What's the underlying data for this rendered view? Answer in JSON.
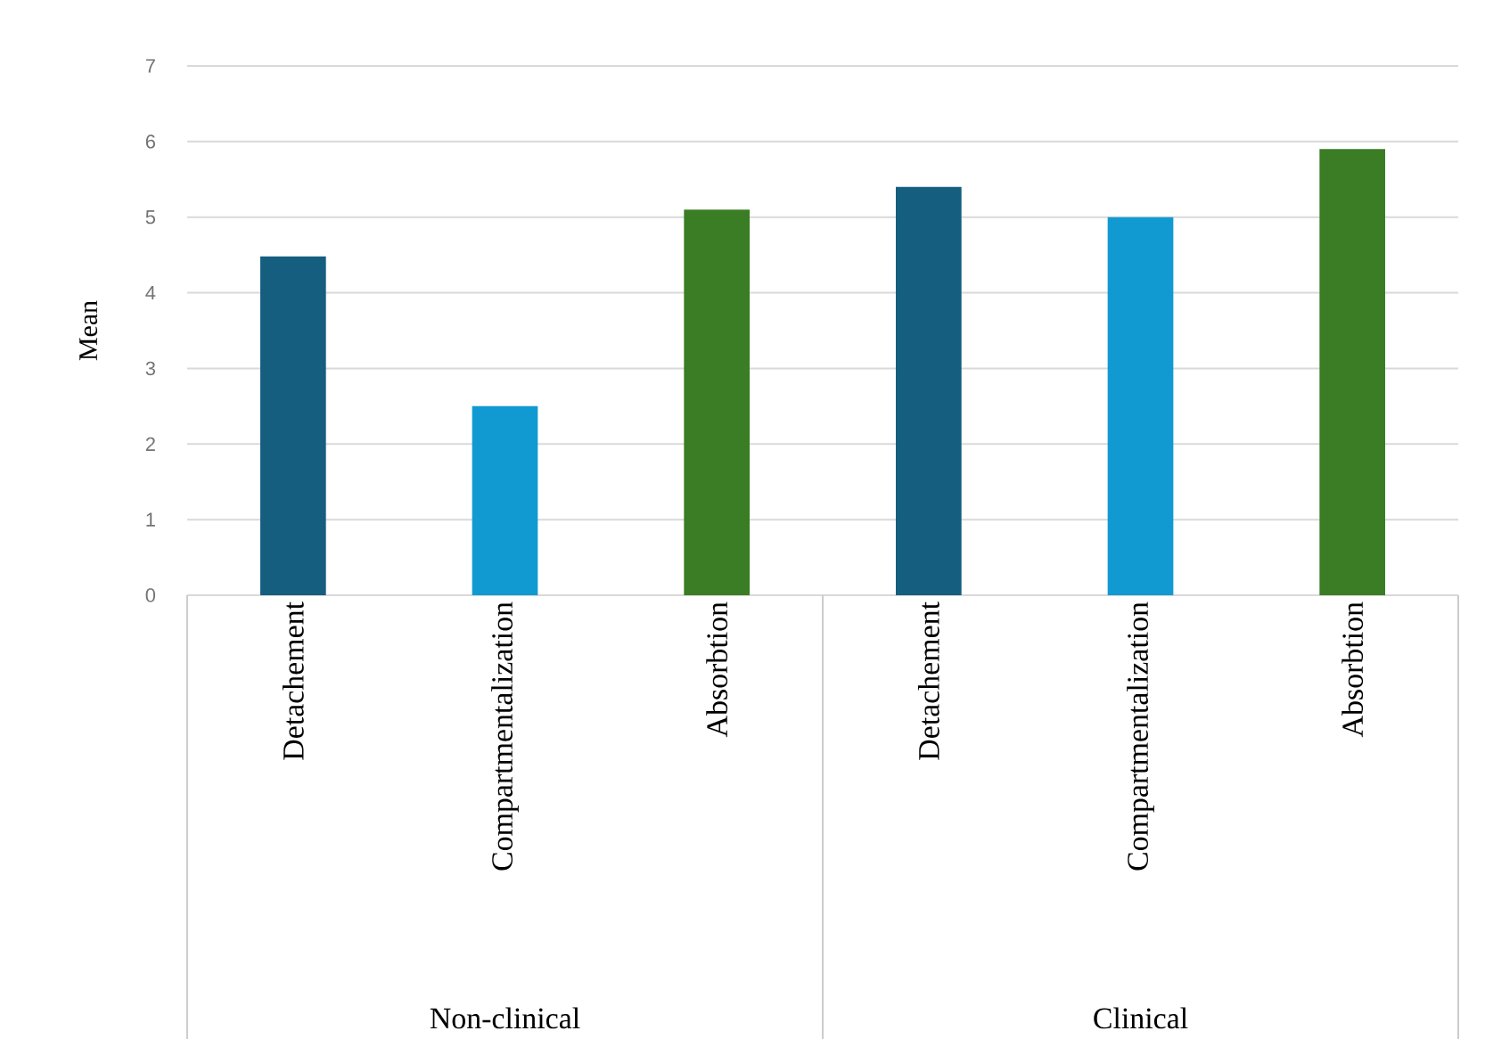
{
  "chart_data": {
    "type": "bar",
    "ylabel": "Mean",
    "categories": [
      "Detachement",
      "Compartmentalization",
      "Absorbtion",
      "Detachement",
      "Compartmentalization",
      "Absorbtion"
    ],
    "values": [
      4.48,
      2.5,
      5.1,
      5.4,
      5.0,
      5.9
    ],
    "colors": [
      "#155e80",
      "#119ad2",
      "#3a7d24",
      "#155e80",
      "#119ad2",
      "#3a7d24"
    ],
    "ylim": [
      0,
      7
    ],
    "yticks": [
      0,
      1,
      2,
      3,
      4,
      5,
      6,
      7
    ],
    "grid": "y",
    "annotations": [
      "Non-clinical",
      "Clinical"
    ]
  }
}
